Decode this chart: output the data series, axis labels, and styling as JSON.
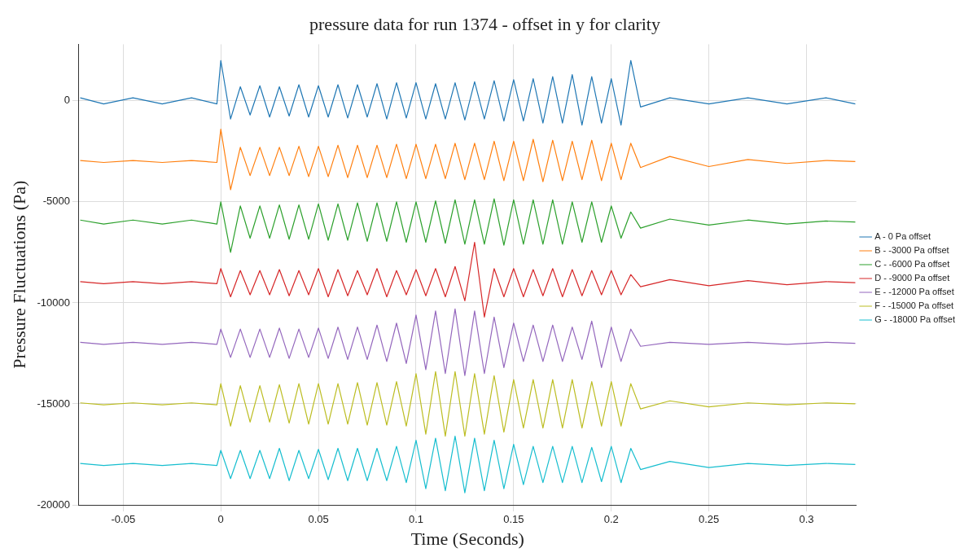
{
  "chart_data": {
    "type": "line",
    "title": "pressure data for run 1374 - offset in y for clarity",
    "xlabel": "Time (Seconds)",
    "ylabel": "Pressure Fluctuations (Pa)",
    "xlim": [
      -0.0727,
      0.3255
    ],
    "xticks": [
      -0.05,
      0,
      0.05,
      0.1,
      0.15,
      0.2,
      0.25,
      0.3
    ],
    "ylim": [
      -20000,
      2800
    ],
    "yticks": [
      -20000,
      -15000,
      -10000,
      -5000,
      0
    ],
    "grid": true,
    "legend": "right",
    "marker": "none",
    "line_style": "solid",
    "x": [
      -0.072,
      -0.06,
      -0.045,
      -0.03,
      -0.015,
      -0.002,
      0,
      0.005,
      0.01,
      0.015,
      0.02,
      0.025,
      0.03,
      0.035,
      0.04,
      0.045,
      0.05,
      0.055,
      0.06,
      0.065,
      0.07,
      0.075,
      0.08,
      0.085,
      0.09,
      0.095,
      0.1,
      0.105,
      0.11,
      0.115,
      0.12,
      0.125,
      0.13,
      0.135,
      0.14,
      0.145,
      0.15,
      0.155,
      0.16,
      0.165,
      0.17,
      0.175,
      0.18,
      0.185,
      0.19,
      0.195,
      0.2,
      0.205,
      0.21,
      0.215,
      0.23,
      0.25,
      0.27,
      0.29,
      0.31,
      0.325
    ],
    "series": [
      {
        "name": "A - 0 Pa offset",
        "color": "#1f77b4",
        "values": [
          150,
          -150,
          150,
          -150,
          150,
          -150,
          2000,
          -900,
          700,
          -700,
          750,
          -800,
          700,
          -750,
          800,
          -800,
          750,
          -800,
          800,
          -850,
          800,
          -800,
          850,
          -900,
          900,
          -850,
          900,
          -900,
          850,
          -900,
          900,
          -950,
          950,
          -900,
          1000,
          -1000,
          1050,
          -1000,
          1100,
          -1100,
          1200,
          -1100,
          1300,
          -1200,
          1200,
          -1100,
          1100,
          -1200,
          2000,
          -300,
          150,
          -150,
          150,
          -150,
          150,
          -150
        ]
      },
      {
        "name": "B - -3000 Pa offset",
        "color": "#ff7f0e",
        "values": [
          -2950,
          -3050,
          -2950,
          -3050,
          -2950,
          -3050,
          -1400,
          -4400,
          -2300,
          -3700,
          -2300,
          -3700,
          -2300,
          -3700,
          -2250,
          -3750,
          -2250,
          -3750,
          -2200,
          -3800,
          -2200,
          -3800,
          -2200,
          -3800,
          -2150,
          -3850,
          -2150,
          -3850,
          -2150,
          -3850,
          -2100,
          -3900,
          -2100,
          -3900,
          -2000,
          -3950,
          -2000,
          -3950,
          -1900,
          -4000,
          -1950,
          -3950,
          -2000,
          -3900,
          -1950,
          -3950,
          -2100,
          -3900,
          -2100,
          -3300,
          -2750,
          -3250,
          -2900,
          -3100,
          -2950,
          -3000
        ]
      },
      {
        "name": "C - -6000 Pa offset",
        "color": "#2ca02c",
        "values": [
          -5900,
          -6100,
          -5900,
          -6100,
          -5900,
          -6100,
          -5000,
          -7500,
          -5200,
          -6800,
          -5200,
          -6800,
          -5150,
          -6850,
          -5150,
          -6850,
          -5100,
          -6900,
          -5100,
          -6900,
          -5050,
          -6950,
          -5050,
          -6950,
          -5000,
          -7000,
          -5000,
          -7000,
          -4950,
          -7050,
          -4900,
          -7100,
          -4900,
          -7100,
          -4850,
          -7150,
          -4900,
          -7100,
          -4900,
          -7100,
          -4900,
          -7100,
          -5000,
          -7000,
          -5000,
          -7000,
          -5200,
          -6800,
          -5500,
          -6300,
          -5850,
          -6150,
          -5900,
          -6100,
          -5950,
          -6000
        ]
      },
      {
        "name": "D - -9000 Pa offset",
        "color": "#d62728",
        "values": [
          -8950,
          -9050,
          -8950,
          -9050,
          -8950,
          -9050,
          -8300,
          -9700,
          -8400,
          -9600,
          -8400,
          -9600,
          -8350,
          -9650,
          -8400,
          -9600,
          -8300,
          -9700,
          -8350,
          -9650,
          -8400,
          -9600,
          -8300,
          -9700,
          -8400,
          -9600,
          -8350,
          -9650,
          -8300,
          -9700,
          -8200,
          -9900,
          -7000,
          -10700,
          -8300,
          -9700,
          -8300,
          -9700,
          -8350,
          -9650,
          -8300,
          -9700,
          -8350,
          -9650,
          -8400,
          -9600,
          -8400,
          -9600,
          -8600,
          -9200,
          -8850,
          -9150,
          -8900,
          -9100,
          -8950,
          -9000
        ]
      },
      {
        "name": "E - -12000 Pa offset",
        "color": "#9467bd",
        "values": [
          -11950,
          -12050,
          -11950,
          -12050,
          -11950,
          -12050,
          -11300,
          -12700,
          -11300,
          -12700,
          -11300,
          -12700,
          -11250,
          -12750,
          -11300,
          -12700,
          -11250,
          -12750,
          -11200,
          -12800,
          -11200,
          -12800,
          -11100,
          -12900,
          -11000,
          -13000,
          -10600,
          -13300,
          -10400,
          -13500,
          -10300,
          -13600,
          -10400,
          -13500,
          -10700,
          -13200,
          -11000,
          -12900,
          -11100,
          -12900,
          -11100,
          -12900,
          -11200,
          -12800,
          -10900,
          -13200,
          -11200,
          -12900,
          -11300,
          -12150,
          -11950,
          -12050,
          -11950,
          -12050,
          -11950,
          -12000
        ]
      },
      {
        "name": "F - -15000 Pa offset",
        "color": "#bcbd22",
        "values": [
          -14950,
          -15050,
          -14950,
          -15050,
          -14950,
          -15050,
          -14000,
          -16100,
          -14100,
          -15900,
          -14100,
          -15900,
          -14050,
          -15950,
          -14000,
          -16000,
          -14000,
          -16000,
          -14000,
          -16000,
          -13950,
          -16050,
          -13950,
          -16050,
          -13900,
          -16100,
          -13500,
          -16500,
          -13400,
          -16600,
          -13400,
          -16600,
          -13500,
          -16500,
          -13600,
          -16400,
          -13800,
          -16200,
          -13800,
          -16200,
          -13800,
          -16200,
          -13800,
          -16200,
          -13900,
          -16100,
          -13900,
          -16100,
          -14000,
          -15250,
          -14850,
          -15150,
          -14950,
          -15050,
          -14950,
          -15000
        ]
      },
      {
        "name": "G - -18000 Pa offset",
        "color": "#17becf",
        "values": [
          -17950,
          -18050,
          -17950,
          -18050,
          -17950,
          -18050,
          -17300,
          -18700,
          -17300,
          -18700,
          -17300,
          -18700,
          -17200,
          -18800,
          -17300,
          -18700,
          -17250,
          -18750,
          -17200,
          -18800,
          -17200,
          -18800,
          -17200,
          -18800,
          -17100,
          -18900,
          -16800,
          -19200,
          -16700,
          -19300,
          -16600,
          -19400,
          -16700,
          -19300,
          -16800,
          -19200,
          -17000,
          -19000,
          -17100,
          -18900,
          -17100,
          -18900,
          -17100,
          -18900,
          -17150,
          -18850,
          -17100,
          -18900,
          -17200,
          -18250,
          -17850,
          -18150,
          -17950,
          -18050,
          -17950,
          -18000
        ]
      }
    ]
  }
}
